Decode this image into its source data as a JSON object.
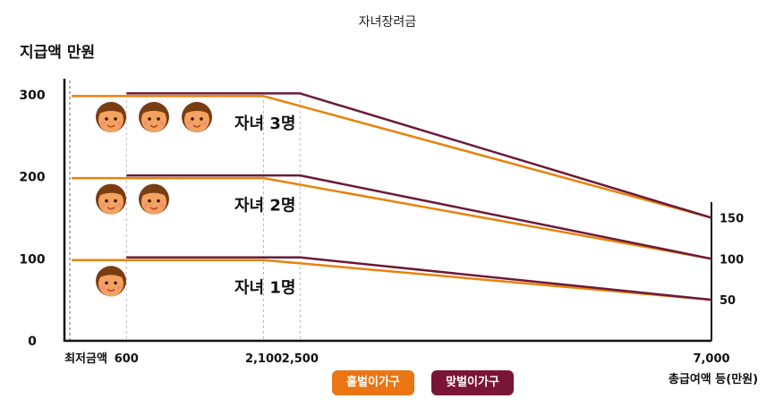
{
  "title": "자녀장려금",
  "ylabel": "지급액 만원",
  "xlabel": "총급여액 등(만원)",
  "legend": {
    "single": "홑벌이가구",
    "dual": "맞벌이가구"
  },
  "colors": {
    "single": "#e8820c",
    "dual": "#6b1a3a",
    "legend_single": "#ea7514",
    "legend_dual": "#7a1538",
    "axis": "#111111",
    "guide": "#bbbbbb"
  },
  "chart_data": {
    "type": "line",
    "title": "자녀장려금",
    "ylabel": "지급액 만원",
    "xlabel": "총급여액 등(만원)",
    "xlim": [
      0,
      7000
    ],
    "ylim": [
      0,
      350
    ],
    "x_tick_labels": [
      {
        "x": 0,
        "label": "최저금액"
      },
      {
        "x": 600,
        "label": "600"
      },
      {
        "x": 2100,
        "label": "2,100"
      },
      {
        "x": 2500,
        "label": "2,500"
      },
      {
        "x": 7000,
        "label": "7,000"
      }
    ],
    "y_ticks": [
      0,
      100,
      200,
      300
    ],
    "y_tick_labels": [
      "0",
      "100",
      "200",
      "300"
    ],
    "right_tick_labels": [
      {
        "y": 150,
        "label": "150"
      },
      {
        "y": 100,
        "label": "100"
      },
      {
        "y": 50,
        "label": "50"
      }
    ],
    "guide_x": [
      600,
      2100,
      2500
    ],
    "series": [
      {
        "name": "홑벌이가구",
        "group": "자녀 3명",
        "x": [
          0,
          2100,
          7000
        ],
        "y": [
          300,
          300,
          150
        ]
      },
      {
        "name": "맞벌이가구",
        "group": "자녀 3명",
        "x": [
          600,
          2500,
          7000
        ],
        "y": [
          300,
          300,
          150
        ]
      },
      {
        "name": "홑벌이가구",
        "group": "자녀 2명",
        "x": [
          0,
          2100,
          7000
        ],
        "y": [
          200,
          200,
          100
        ]
      },
      {
        "name": "맞벌이가구",
        "group": "자녀 2명",
        "x": [
          600,
          2500,
          7000
        ],
        "y": [
          200,
          200,
          100
        ]
      },
      {
        "name": "홑벌이가구",
        "group": "자녀 1명",
        "x": [
          0,
          2100,
          7000
        ],
        "y": [
          100,
          100,
          50
        ]
      },
      {
        "name": "맞벌이가구",
        "group": "자녀 1명",
        "x": [
          600,
          2500,
          7000
        ],
        "y": [
          100,
          100,
          50
        ]
      }
    ],
    "annotations": [
      {
        "label": "자녀 3명",
        "y": 300,
        "children": 3
      },
      {
        "label": "자녀 2명",
        "y": 200,
        "children": 2
      },
      {
        "label": "자녀 1명",
        "y": 100,
        "children": 1
      }
    ]
  }
}
